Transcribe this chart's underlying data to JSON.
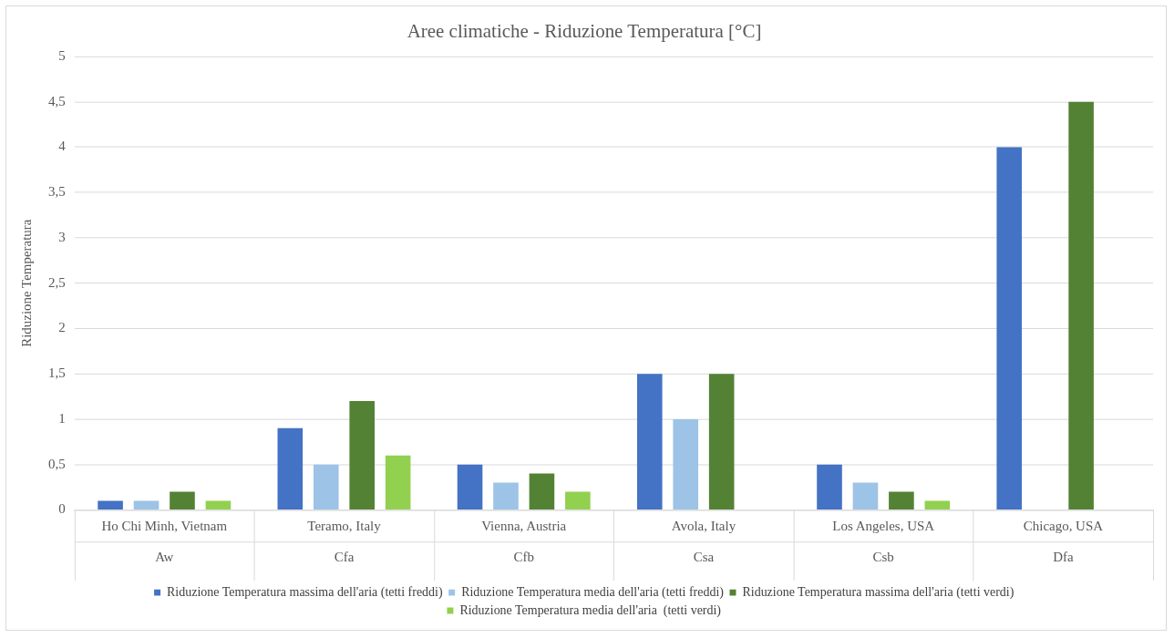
{
  "chart_data": {
    "type": "bar",
    "title": "Aree climatiche - Riduzione Temperatura [°C]",
    "ylabel": "Riduzione Temperatura",
    "categories": [
      "Ho Chi Minh, Vietnam",
      "Teramo, Italy",
      "Vienna, Austria",
      "Avola, Italy",
      "Los Angeles, USA",
      "Chicago, USA"
    ],
    "annotations": [
      "Aw",
      "Cfa",
      "Cfb",
      "Csa",
      "Csb",
      "Dfa"
    ],
    "series": [
      {
        "name": "Riduzione Temperatura massima dell'aria (tetti freddi)",
        "color": "#4472c4",
        "values": [
          0.1,
          0.9,
          0.5,
          1.5,
          0.5,
          4
        ]
      },
      {
        "name": "Riduzione Temperatura media dell'aria (tetti freddi)",
        "color": "#9dc3e6",
        "values": [
          0.1,
          0.5,
          0.3,
          1.0,
          0.3,
          null
        ]
      },
      {
        "name": "Riduzione Temperatura massima dell'aria (tetti verdi)",
        "color": "#548235",
        "values": [
          0.2,
          1.2,
          0.4,
          1.5,
          0.2,
          4.5
        ]
      },
      {
        "name": "Riduzione Temperatura media dell'aria  (tetti verdi)",
        "color": "#92d050",
        "values": [
          0.1,
          0.6,
          0.2,
          null,
          0.1,
          null
        ]
      }
    ],
    "ylim": [
      0,
      5
    ],
    "yticks": [
      0,
      {
        "value": 0.5,
        "label": "0,5"
      },
      1,
      {
        "value": 1.5,
        "label": "1,5"
      },
      2,
      {
        "value": 2.5,
        "label": "2,5"
      },
      3,
      {
        "value": 3.5,
        "label": "3,5"
      },
      4,
      {
        "value": 4.5,
        "label": "4,5"
      },
      5
    ],
    "grid": "y",
    "legend": "bottom"
  }
}
